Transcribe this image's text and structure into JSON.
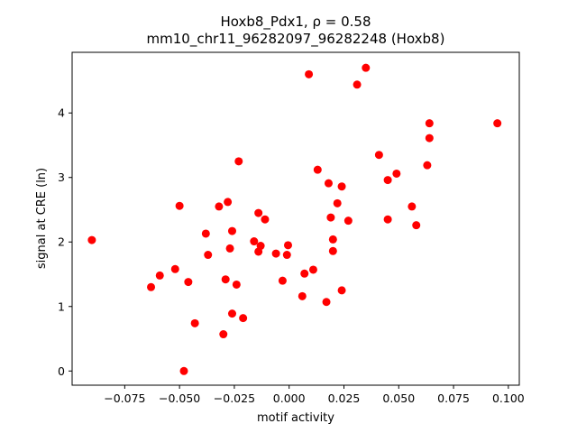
{
  "chart_data": {
    "type": "scatter",
    "title_line1": "Hoxb8_Pdx1, ρ = 0.58",
    "title_line2": "mm10_chr11_96282097_96282248 (Hoxb8)",
    "xlabel": "motif activity",
    "ylabel": "signal at CRE (ln)",
    "xlim": [
      -0.099,
      0.105
    ],
    "ylim": [
      -0.22,
      4.94
    ],
    "xticks": [
      -0.075,
      -0.05,
      -0.025,
      0.0,
      0.025,
      0.05,
      0.075,
      0.1
    ],
    "xtick_labels": [
      "−0.075",
      "−0.050",
      "−0.025",
      "0.000",
      "0.025",
      "0.050",
      "0.075",
      "0.100"
    ],
    "yticks": [
      0,
      1,
      2,
      3,
      4
    ],
    "ytick_labels": [
      "0",
      "1",
      "2",
      "3",
      "4"
    ],
    "grid": false,
    "marker_color": "#ff0000",
    "points": [
      {
        "x": -0.09,
        "y": 2.03
      },
      {
        "x": -0.063,
        "y": 1.3
      },
      {
        "x": -0.059,
        "y": 1.48
      },
      {
        "x": -0.052,
        "y": 1.58
      },
      {
        "x": -0.05,
        "y": 2.56
      },
      {
        "x": -0.048,
        "y": 0.0
      },
      {
        "x": -0.046,
        "y": 1.38
      },
      {
        "x": -0.043,
        "y": 0.74
      },
      {
        "x": -0.038,
        "y": 2.13
      },
      {
        "x": -0.037,
        "y": 1.8
      },
      {
        "x": -0.032,
        "y": 2.55
      },
      {
        "x": -0.03,
        "y": 0.57
      },
      {
        "x": -0.029,
        "y": 1.42
      },
      {
        "x": -0.028,
        "y": 2.62
      },
      {
        "x": -0.027,
        "y": 1.9
      },
      {
        "x": -0.026,
        "y": 2.17
      },
      {
        "x": -0.026,
        "y": 0.89
      },
      {
        "x": -0.024,
        "y": 1.34
      },
      {
        "x": -0.023,
        "y": 3.25
      },
      {
        "x": -0.021,
        "y": 0.82
      },
      {
        "x": -0.016,
        "y": 2.01
      },
      {
        "x": -0.014,
        "y": 2.45
      },
      {
        "x": -0.014,
        "y": 1.85
      },
      {
        "x": -0.013,
        "y": 1.94
      },
      {
        "x": -0.011,
        "y": 2.35
      },
      {
        "x": -0.006,
        "y": 1.82
      },
      {
        "x": -0.003,
        "y": 1.4
      },
      {
        "x": -0.001,
        "y": 1.8
      },
      {
        "x": -0.0005,
        "y": 1.95
      },
      {
        "x": 0.006,
        "y": 1.16
      },
      {
        "x": 0.007,
        "y": 1.51
      },
      {
        "x": 0.009,
        "y": 4.6
      },
      {
        "x": 0.011,
        "y": 1.57
      },
      {
        "x": 0.013,
        "y": 3.12
      },
      {
        "x": 0.017,
        "y": 1.07
      },
      {
        "x": 0.018,
        "y": 2.91
      },
      {
        "x": 0.019,
        "y": 2.38
      },
      {
        "x": 0.02,
        "y": 1.86
      },
      {
        "x": 0.02,
        "y": 2.04
      },
      {
        "x": 0.022,
        "y": 2.6
      },
      {
        "x": 0.024,
        "y": 2.86
      },
      {
        "x": 0.024,
        "y": 1.25
      },
      {
        "x": 0.027,
        "y": 2.33
      },
      {
        "x": 0.031,
        "y": 4.44
      },
      {
        "x": 0.035,
        "y": 4.7
      },
      {
        "x": 0.041,
        "y": 3.35
      },
      {
        "x": 0.045,
        "y": 2.96
      },
      {
        "x": 0.045,
        "y": 2.35
      },
      {
        "x": 0.049,
        "y": 3.06
      },
      {
        "x": 0.056,
        "y": 2.55
      },
      {
        "x": 0.058,
        "y": 2.26
      },
      {
        "x": 0.063,
        "y": 3.19
      },
      {
        "x": 0.064,
        "y": 3.61
      },
      {
        "x": 0.064,
        "y": 3.84
      },
      {
        "x": 0.095,
        "y": 3.84
      }
    ]
  }
}
